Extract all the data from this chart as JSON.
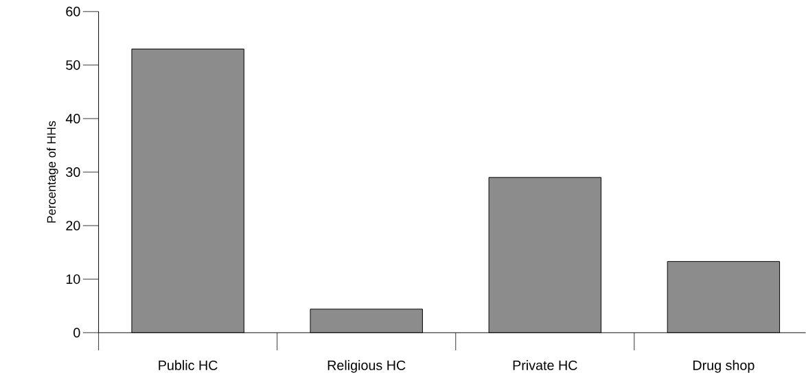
{
  "chart_data": {
    "type": "bar",
    "ylabel": "Percentage of HHs",
    "categories": [
      "Public HC",
      "Religious HC",
      "Private HC",
      "Drug shop"
    ],
    "values": [
      53,
      4.4,
      29,
      13.3
    ],
    "color": "#8c8c8c",
    "ylim": [
      0,
      60
    ],
    "yticks": [
      0,
      10,
      20,
      30,
      40,
      50,
      60
    ]
  }
}
